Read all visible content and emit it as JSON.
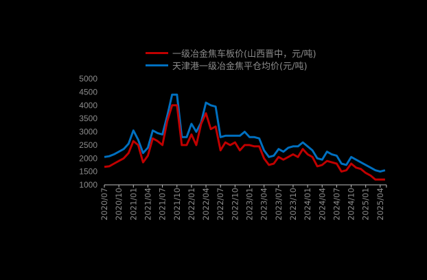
{
  "chart_data": {
    "type": "line",
    "title": "",
    "xlabel": "",
    "ylabel": "",
    "ylim": [
      1000,
      5000
    ],
    "yticks": [
      1000,
      1500,
      2000,
      2500,
      3000,
      3500,
      4000,
      4500,
      5000
    ],
    "xticks": [
      "2020/07",
      "2020/10",
      "2021/01",
      "2021/04",
      "2021/07",
      "2021/10",
      "2022/01",
      "2022/04",
      "2022/07",
      "2022/10",
      "2023/01",
      "2023/04",
      "2023/07",
      "2023/10",
      "2024/01",
      "2024/04",
      "2024/07",
      "2024/10",
      "2025/01",
      "2025/04"
    ],
    "grid": false,
    "legend_position": "top",
    "x": [
      "2020/07",
      "2020/08",
      "2020/09",
      "2020/10",
      "2020/11",
      "2020/12",
      "2021/01",
      "2021/02",
      "2021/03",
      "2021/04",
      "2021/05",
      "2021/06",
      "2021/07",
      "2021/08",
      "2021/09",
      "2021/10",
      "2021/11",
      "2021/12",
      "2022/01",
      "2022/02",
      "2022/03",
      "2022/04",
      "2022/05",
      "2022/06",
      "2022/07",
      "2022/08",
      "2022/09",
      "2022/10",
      "2022/11",
      "2022/12",
      "2023/01",
      "2023/02",
      "2023/03",
      "2023/04",
      "2023/05",
      "2023/06",
      "2023/07",
      "2023/08",
      "2023/09",
      "2023/10",
      "2023/11",
      "2023/12",
      "2024/01",
      "2024/02",
      "2024/03",
      "2024/04",
      "2024/05",
      "2024/06",
      "2024/07",
      "2024/08",
      "2024/09",
      "2024/10",
      "2024/11",
      "2024/12",
      "2025/01",
      "2025/02",
      "2025/03",
      "2025/04",
      "2025/05"
    ],
    "series": [
      {
        "name": "一级冶金焦车板价(山西晋中，元/吨)",
        "color": "#c00000",
        "values": [
          1680,
          1700,
          1800,
          1900,
          2000,
          2200,
          2650,
          2500,
          1850,
          2100,
          2750,
          2650,
          2500,
          3400,
          4000,
          4000,
          2500,
          2500,
          2900,
          2500,
          3300,
          3700,
          3100,
          3200,
          2300,
          2600,
          2500,
          2600,
          2300,
          2500,
          2500,
          2450,
          2450,
          2000,
          1750,
          1800,
          2050,
          1950,
          2050,
          2150,
          2050,
          2350,
          2150,
          2050,
          1700,
          1750,
          1900,
          1850,
          1800,
          1500,
          1550,
          1800,
          1650,
          1600,
          1450,
          1350,
          1200,
          1200,
          1200
        ]
      },
      {
        "name": "天津港一级冶金焦平仓均价(元/吨)",
        "color": "#0070c0",
        "values": [
          2050,
          2080,
          2150,
          2250,
          2350,
          2550,
          3050,
          2700,
          2200,
          2400,
          3050,
          2950,
          2900,
          3600,
          4400,
          4400,
          2800,
          2800,
          3300,
          3000,
          3350,
          4100,
          4000,
          3950,
          2800,
          2850,
          2850,
          2850,
          2850,
          3000,
          2800,
          2800,
          2750,
          2300,
          2050,
          2100,
          2350,
          2250,
          2400,
          2450,
          2450,
          2600,
          2450,
          2300,
          2000,
          1950,
          2250,
          2150,
          2100,
          1800,
          1750,
          2050,
          1950,
          1850,
          1750,
          1650,
          1550,
          1500,
          1550
        ]
      }
    ]
  }
}
